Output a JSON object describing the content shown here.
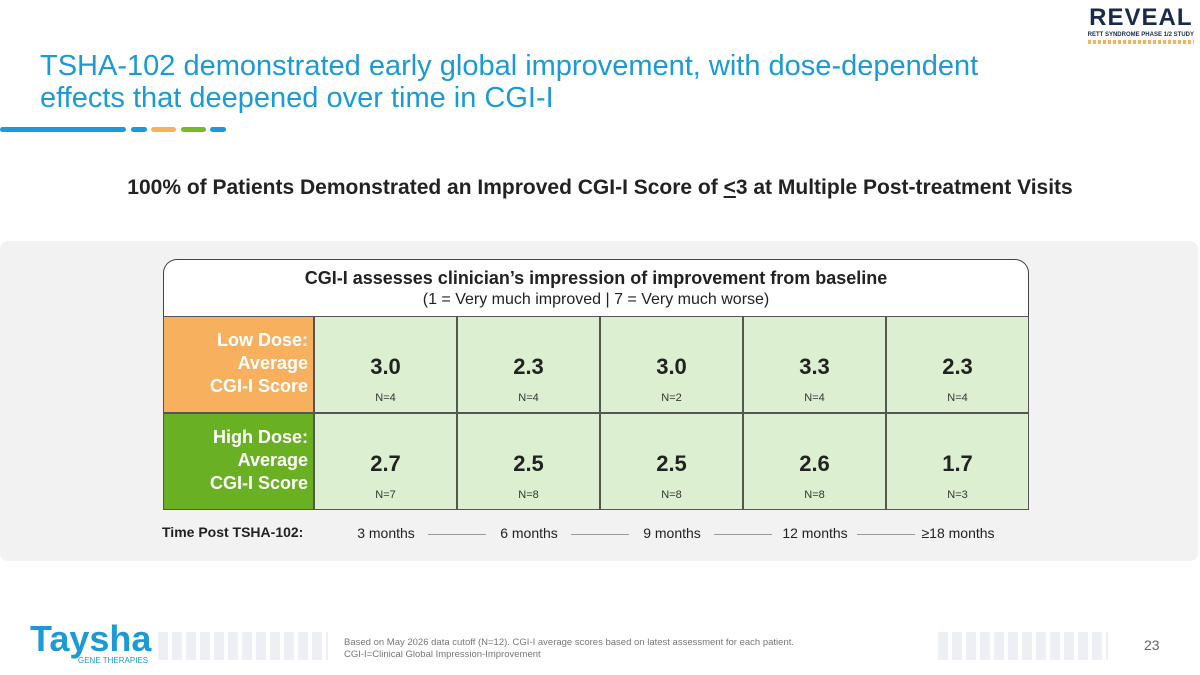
{
  "header": {
    "title_line1": "TSHA-102 demonstrated early global improvement, with dose-dependent",
    "title_line2": "effects that deepened over time in CGI-I",
    "logo": "REVEAL",
    "logo_sub": "RETT SYNDROME PHASE 1/2 STUDY"
  },
  "headline": {
    "before": "100% of Patients Demonstrated an Improved CGI-I Score of ",
    "underlined": "<",
    "after": "3 at Multiple Post-treatment Visits"
  },
  "table": {
    "title": "CGI-I assesses clinician’s impression of improvement from baseline",
    "subtitle": "(1 = Very much improved | 7 = Very much worse)",
    "rows": [
      {
        "label": [
          "Low Dose:",
          "Average",
          "CGI-I Score"
        ],
        "cells": [
          {
            "score": "3.0",
            "n": "N=4"
          },
          {
            "score": "2.3",
            "n": "N=4"
          },
          {
            "score": "3.0",
            "n": "N=2"
          },
          {
            "score": "3.3",
            "n": "N=4"
          },
          {
            "score": "2.3",
            "n": "N=4"
          }
        ]
      },
      {
        "label": [
          "High Dose:",
          "Average",
          "CGI-I Score"
        ],
        "cells": [
          {
            "score": "2.7",
            "n": "N=7"
          },
          {
            "score": "2.5",
            "n": "N=8"
          },
          {
            "score": "2.5",
            "n": "N=8"
          },
          {
            "score": "2.6",
            "n": "N=8"
          },
          {
            "score": "1.7",
            "n": "N=3"
          }
        ]
      }
    ],
    "time_label": "Time Post TSHA-102:",
    "timepoints": [
      "3 months",
      "6 months",
      "9 months",
      "12 months",
      "≥18 months"
    ]
  },
  "footer": {
    "logo": "Taysha",
    "logo_sub": "GENE THERAPIES",
    "notes": [
      "Based on May 2026 data cutoff (N=12). CGI-I average scores based on latest assessment for each patient.",
      "CGI-I=Clinical Global Impression-Improvement"
    ],
    "page": "23"
  }
}
